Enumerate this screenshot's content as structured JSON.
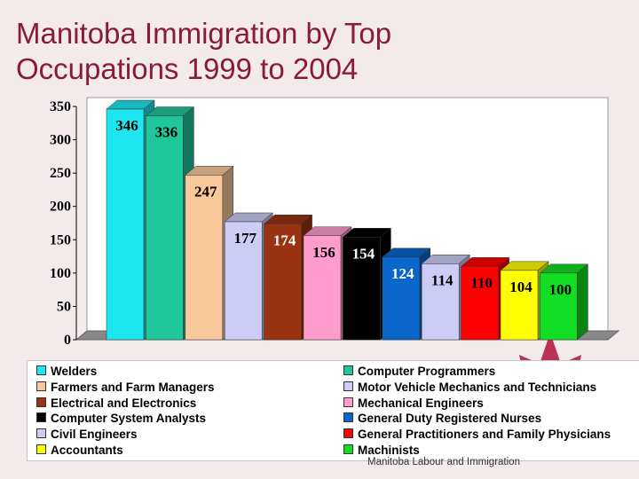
{
  "slide": {
    "title_line1": "Manitoba Immigration by Top",
    "title_line2": "Occupations 1999 to 2004",
    "footer": "Manitoba Labour and Immigration"
  },
  "chart_data": {
    "type": "bar",
    "title": "",
    "xlabel": "",
    "ylabel": "",
    "ylim": [
      0,
      350
    ],
    "yticks": [
      0,
      50,
      100,
      150,
      200,
      250,
      300,
      350
    ],
    "legend_position": "bottom",
    "series": [
      {
        "name": "Welders",
        "value": 346,
        "color": "#1ee6f0"
      },
      {
        "name": "Computer Programmers",
        "value": 336,
        "color": "#1fc79a"
      },
      {
        "name": "Farmers and Farm Managers",
        "value": 247,
        "color": "#f9c99c"
      },
      {
        "name": "Motor Vehicle Mechanics and Technicians",
        "value": 177,
        "color": "#ccccf5"
      },
      {
        "name": "Electrical and Electronics",
        "value": 174,
        "color": "#993311"
      },
      {
        "name": "Mechanical Engineers",
        "value": 156,
        "color": "#ff9ccc"
      },
      {
        "name": "Computer System Analysts",
        "value": 154,
        "color": "#000000"
      },
      {
        "name": "General Duty Registered Nurses",
        "value": 124,
        "color": "#0b66cc"
      },
      {
        "name": "Civil Engineers",
        "value": 114,
        "color": "#ccccf5"
      },
      {
        "name": "General Practitioners and Family Physicians",
        "value": 110,
        "color": "#ff0000"
      },
      {
        "name": "Accountants",
        "value": 104,
        "color": "#ffff00"
      },
      {
        "name": "Machinists",
        "value": 100,
        "color": "#11dd22"
      }
    ]
  }
}
